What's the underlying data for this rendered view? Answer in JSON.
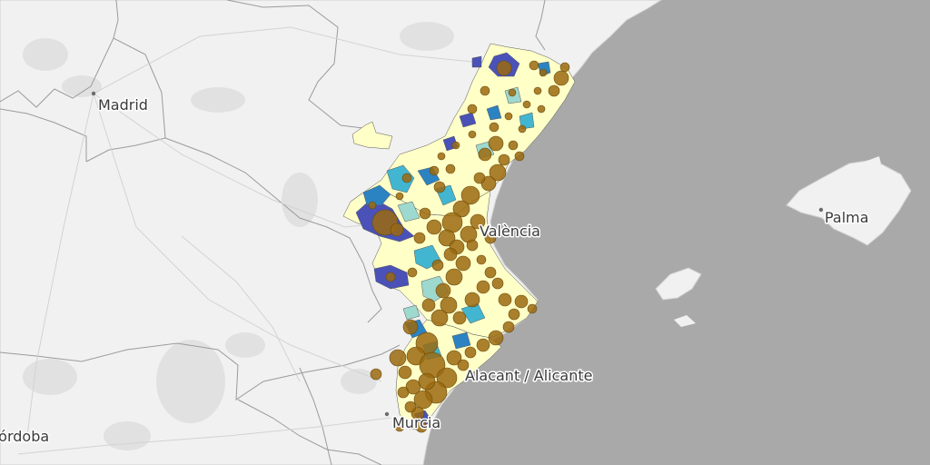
{
  "map": {
    "labels": {
      "madrid": "Madrid",
      "valencia": "València",
      "alicante": "Alacant / Alicante",
      "murcia": "Murcia",
      "cordoba": "Córdoba",
      "palma": "Palma"
    },
    "colors": {
      "sea": "#a9a9a9",
      "land": "#f1f1f1",
      "land_shade": "#e2e2e2",
      "border": "#9b9b9b",
      "class_1": "#ffffc8",
      "class_2": "#9ed9cf",
      "class_3": "#42b6d1",
      "class_4": "#2c83c2",
      "class_5": "#4a52b8",
      "bubble_fill": "#9b6a10",
      "bubble_stroke": "#6b4a0a"
    }
  }
}
